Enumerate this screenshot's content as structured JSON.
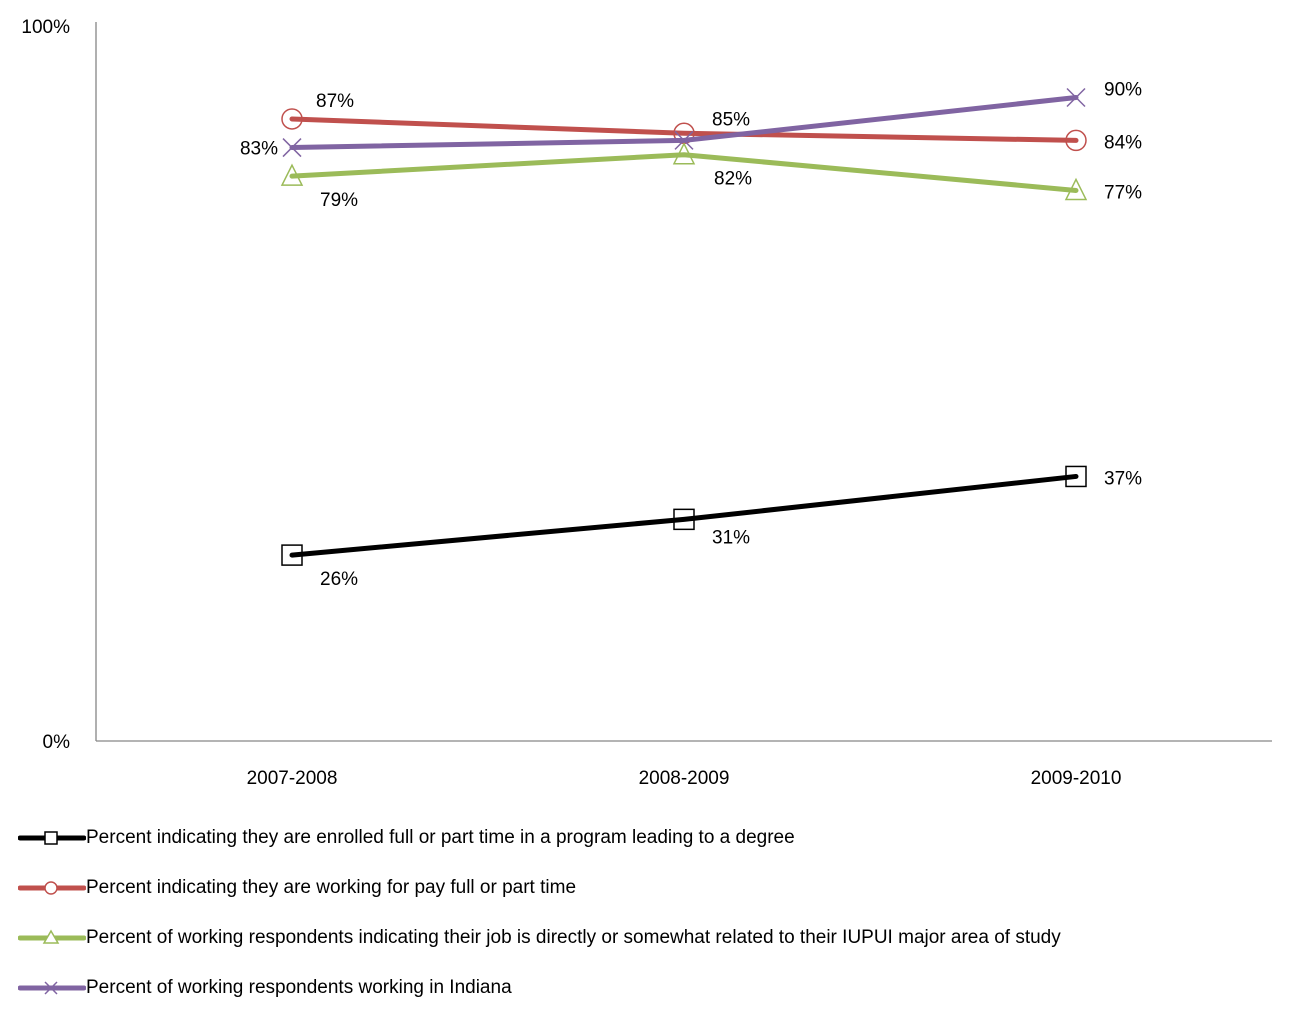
{
  "chart_data": {
    "type": "line",
    "title": "",
    "xlabel": "",
    "ylabel": "",
    "ylim": [
      0,
      100
    ],
    "y_ticks": [
      0,
      100
    ],
    "y_tick_labels": [
      "0%",
      "100%"
    ],
    "grid": false,
    "legend_position": "bottom",
    "categories": [
      "2007-2008",
      "2008-2009",
      "2009-2010"
    ],
    "series": [
      {
        "name": "Percent indicating they are enrolled full or part time in a program leading to a degree",
        "values": [
          26,
          31,
          37
        ],
        "labels": [
          "26%",
          "31%",
          "37%"
        ],
        "color": "#000000",
        "marker": "square"
      },
      {
        "name": "Percent indicating they are working for pay full or part time",
        "values": [
          87,
          85,
          84
        ],
        "labels": [
          "87%",
          "85%",
          "84%"
        ],
        "color": "#c0504d",
        "marker": "circle"
      },
      {
        "name": "Percent of working respondents indicating their job is directly or somewhat related to their IUPUI major area of study",
        "values": [
          79,
          82,
          77
        ],
        "labels": [
          "79%",
          "82%",
          "77%"
        ],
        "color": "#9bbb59",
        "marker": "triangle"
      },
      {
        "name": "Percent of working respondents working in Indiana",
        "values": [
          83,
          84,
          90
        ],
        "labels": [
          "83%",
          "",
          "90%"
        ],
        "color": "#8064a2",
        "marker": "x"
      }
    ]
  }
}
